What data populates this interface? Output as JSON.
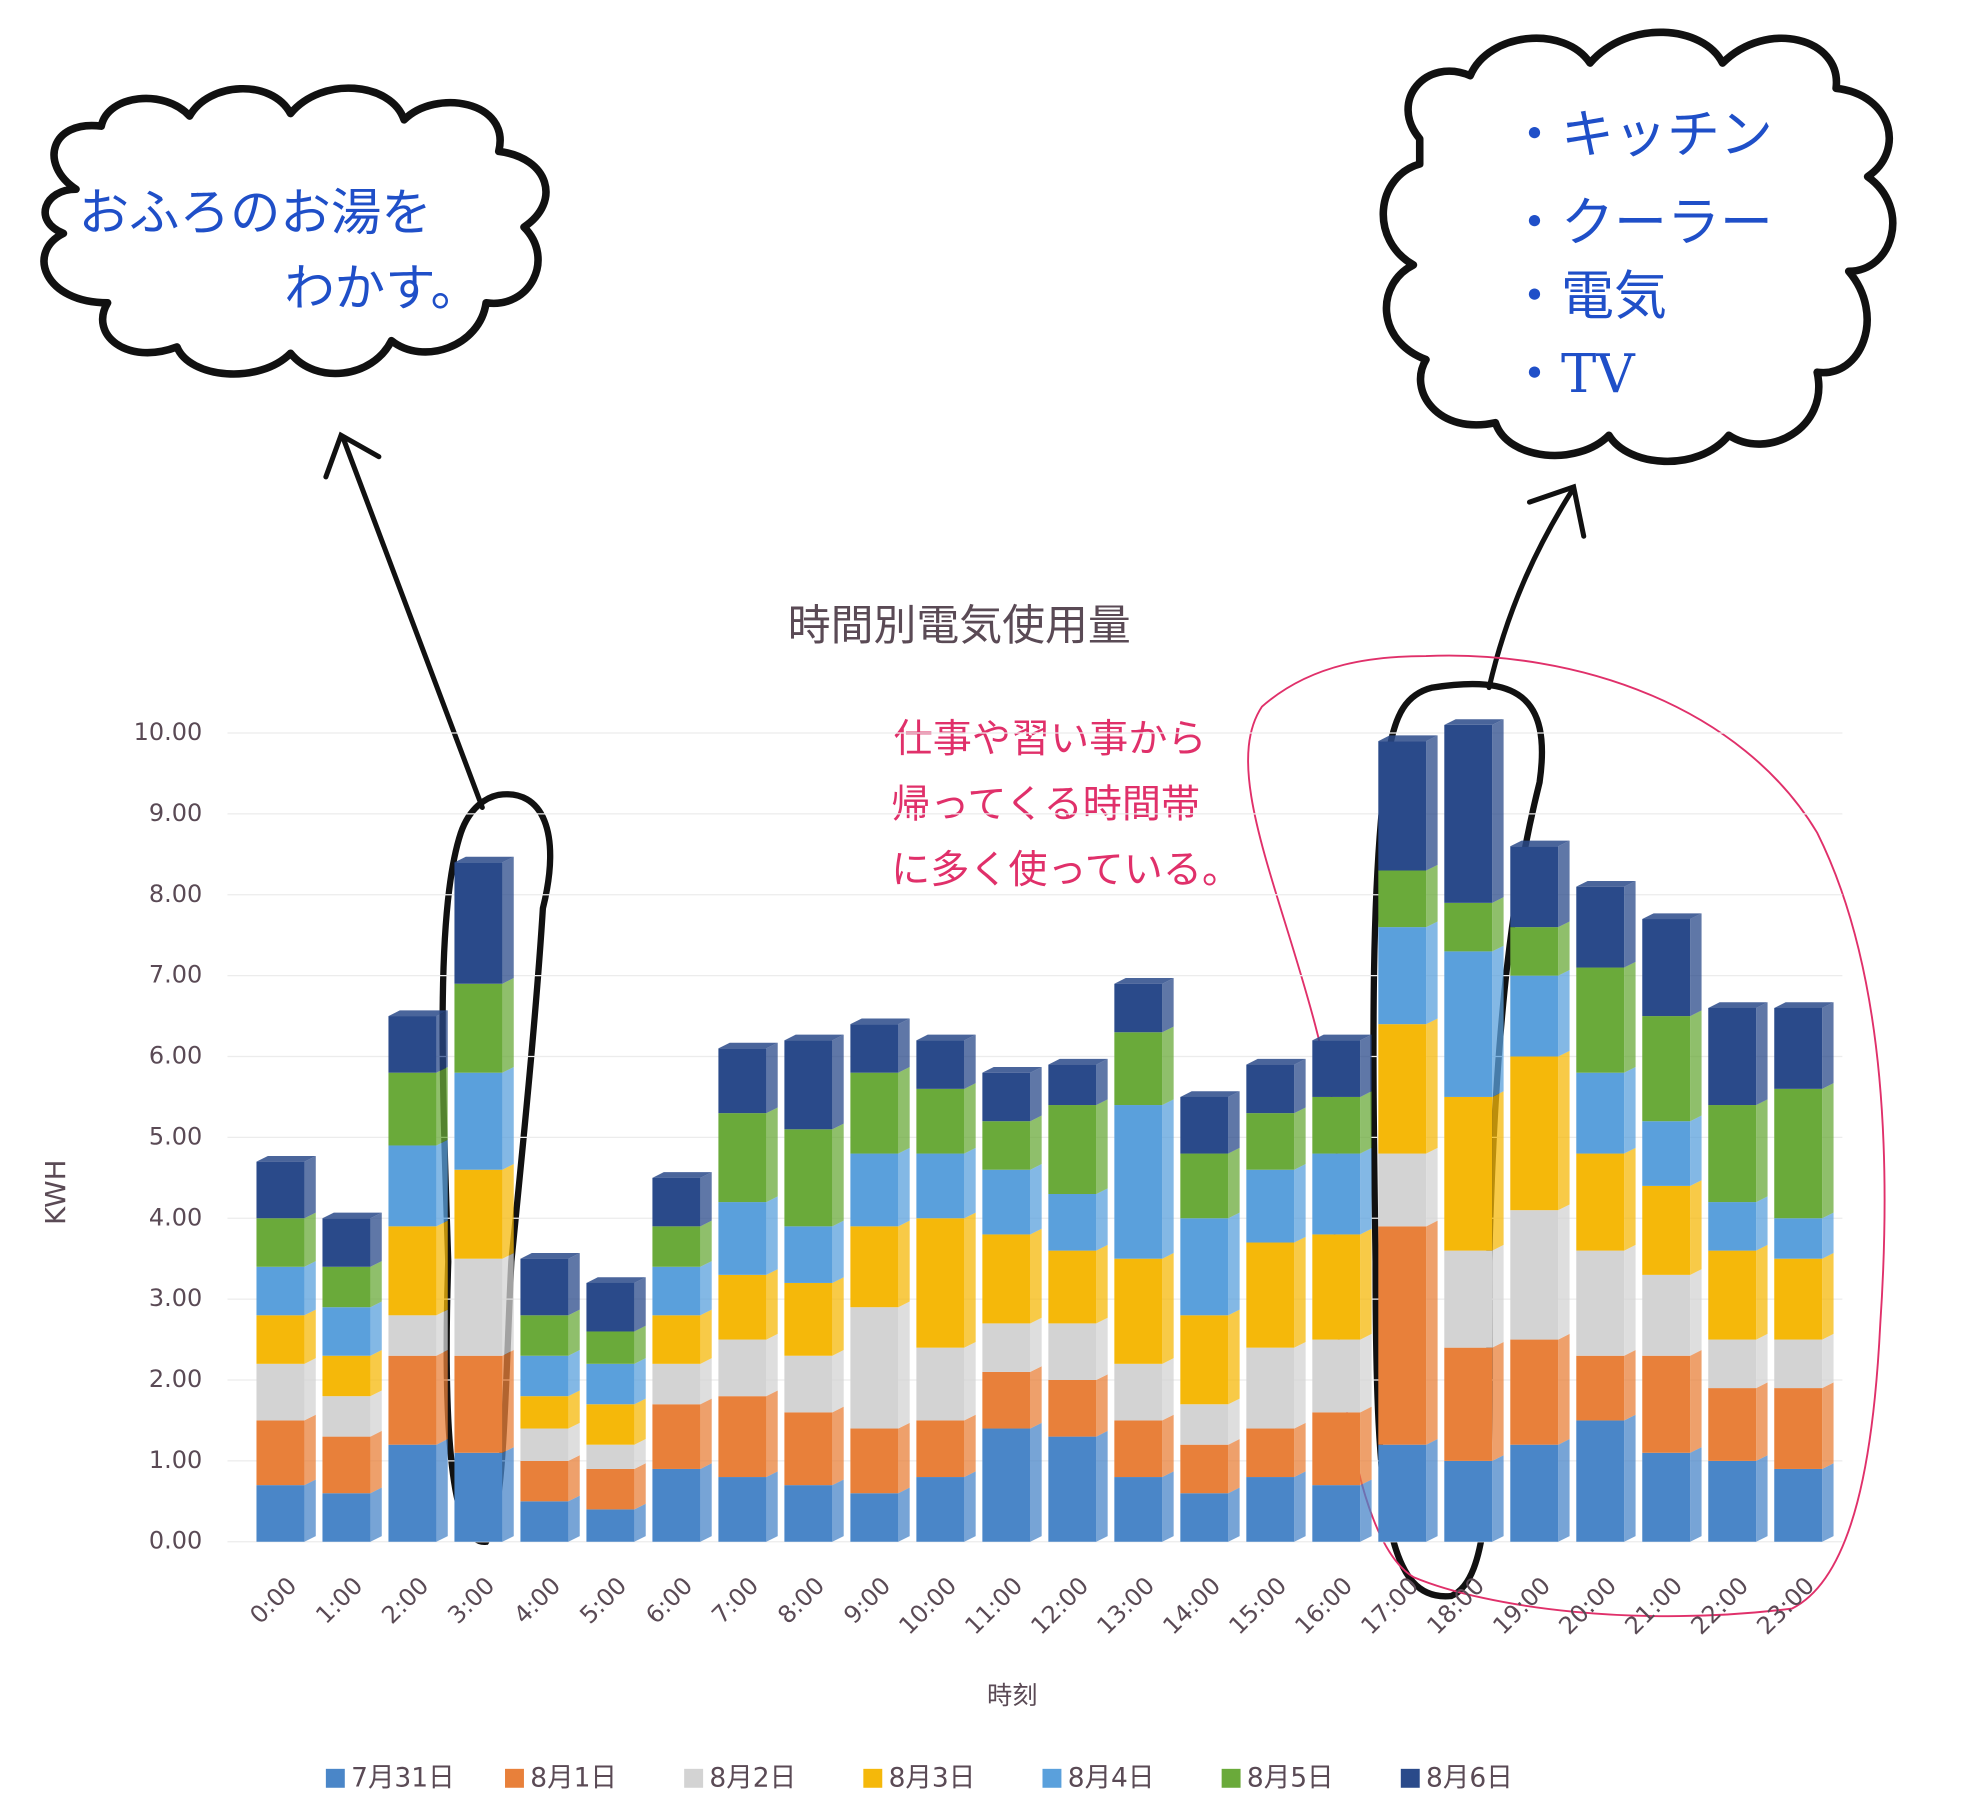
{
  "chart_data": {
    "type": "bar",
    "stacked": true,
    "title": "時間別電気使用量",
    "x_label": "時刻",
    "y_label": "KWH",
    "categories": [
      "0:00",
      "1:00",
      "2:00",
      "3:00",
      "4:00",
      "5:00",
      "6:00",
      "7:00",
      "8:00",
      "9:00",
      "10:00",
      "11:00",
      "12:00",
      "13:00",
      "14:00",
      "15:00",
      "16:00",
      "17:00",
      "18:00",
      "19:00",
      "20:00",
      "21:00",
      "22:00",
      "23:00"
    ],
    "series": [
      {
        "name": "7月31日",
        "color": "#4a86c8",
        "values": [
          0.7,
          0.6,
          1.2,
          1.1,
          0.5,
          0.4,
          0.9,
          0.8,
          0.7,
          0.6,
          0.8,
          1.4,
          1.3,
          0.8,
          0.6,
          0.8,
          0.7,
          1.2,
          1.0,
          1.2,
          1.5,
          1.1,
          1.0,
          0.9
        ]
      },
      {
        "name": "8月1日",
        "color": "#e8803a",
        "values": [
          0.8,
          0.7,
          1.1,
          1.2,
          0.5,
          0.5,
          0.8,
          1.0,
          0.9,
          0.8,
          0.7,
          0.7,
          0.7,
          0.7,
          0.6,
          0.6,
          0.9,
          2.7,
          1.4,
          1.3,
          0.8,
          1.2,
          0.9,
          1.0
        ]
      },
      {
        "name": "8月2日",
        "color": "#d3d3d3",
        "values": [
          0.7,
          0.5,
          0.5,
          1.2,
          0.4,
          0.3,
          0.5,
          0.7,
          0.7,
          1.5,
          0.9,
          0.6,
          0.7,
          0.7,
          0.5,
          1.0,
          0.9,
          0.9,
          1.2,
          1.6,
          1.3,
          1.0,
          0.6,
          0.6
        ]
      },
      {
        "name": "8月3日",
        "color": "#f5b80a",
        "values": [
          0.6,
          0.5,
          1.1,
          1.1,
          0.4,
          0.5,
          0.6,
          0.8,
          0.9,
          1.0,
          1.6,
          1.1,
          0.9,
          1.3,
          1.1,
          1.3,
          1.3,
          1.6,
          1.9,
          1.9,
          1.2,
          1.1,
          1.1,
          1.0
        ]
      },
      {
        "name": "8月4日",
        "color": "#5aa0dc",
        "values": [
          0.6,
          0.6,
          1.0,
          1.2,
          0.5,
          0.5,
          0.6,
          0.9,
          0.7,
          0.9,
          0.8,
          0.8,
          0.7,
          1.9,
          1.2,
          0.9,
          1.0,
          1.2,
          1.8,
          1.0,
          1.0,
          0.8,
          0.6,
          0.5
        ]
      },
      {
        "name": "8月5日",
        "color": "#6aaa3a",
        "values": [
          0.6,
          0.5,
          0.9,
          1.1,
          0.5,
          0.4,
          0.5,
          1.1,
          1.2,
          1.0,
          0.8,
          0.6,
          1.1,
          0.9,
          0.8,
          0.7,
          0.7,
          0.7,
          0.6,
          0.6,
          1.3,
          1.3,
          1.2,
          1.6
        ]
      },
      {
        "name": "8月6日",
        "color": "#2a4a8a",
        "values": [
          0.7,
          0.6,
          0.7,
          1.5,
          0.7,
          0.6,
          0.6,
          0.8,
          1.1,
          0.6,
          0.6,
          0.6,
          0.5,
          0.6,
          0.7,
          0.6,
          0.7,
          1.6,
          2.2,
          1.0,
          1.0,
          1.2,
          1.2,
          1.0
        ]
      }
    ],
    "ylim": [
      0,
      10
    ],
    "yticks": [
      {
        "value": 0,
        "label": "0.00"
      },
      {
        "value": 1,
        "label": "1.00"
      },
      {
        "value": 2,
        "label": "2.00"
      },
      {
        "value": 3,
        "label": "3.00"
      },
      {
        "value": 4,
        "label": "4.00"
      },
      {
        "value": 5,
        "label": "5.00"
      },
      {
        "value": 6,
        "label": "6.00"
      },
      {
        "value": 7,
        "label": "7.00"
      },
      {
        "value": 8,
        "label": "8.00"
      },
      {
        "value": 9,
        "label": "9.00"
      },
      {
        "value": 10,
        "label": "10.00"
      }
    ],
    "grid": true,
    "legend": "bottom",
    "annotations": {
      "bath_note": [
        "おふろのお湯を",
        "わかす。"
      ],
      "appliance_note": [
        "・キッチン",
        "・クーラー",
        "・電気",
        "・TV"
      ],
      "evening_note": [
        "仕事や習い事から",
        "帰ってくる時間帯",
        "に多く使っている。"
      ]
    }
  }
}
